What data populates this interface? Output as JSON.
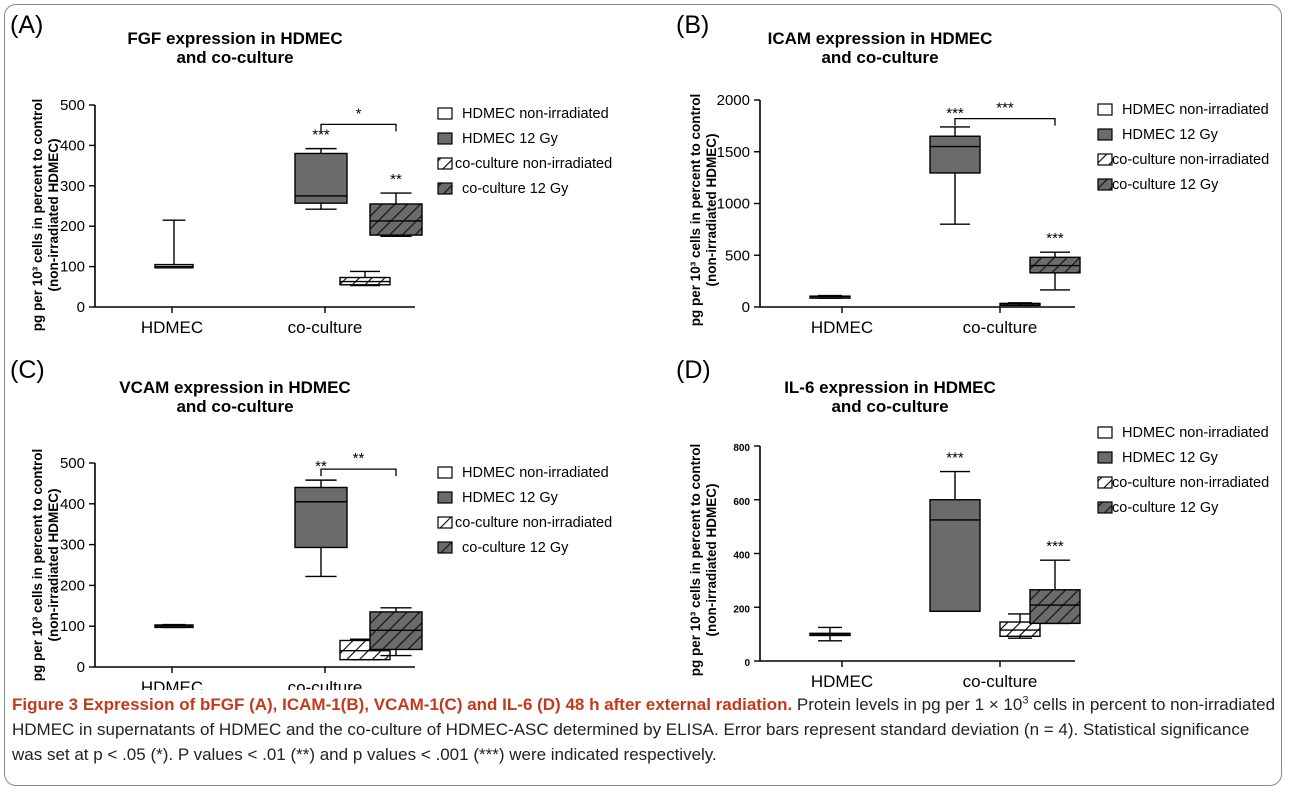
{
  "colors": {
    "dark_fill": "#6b6b6b",
    "line": "#000000",
    "caption_accent": "#c23a1e"
  },
  "chart_data": [
    {
      "type": "boxplot",
      "panel": "(A)",
      "title": [
        "FGF expression in HDMEC",
        "and co-culture"
      ],
      "ylabel": [
        "pg per 10³ cells in percent to control",
        "(non-irradiated HDMEC)"
      ],
      "ylim": [
        0,
        500
      ],
      "yticks": [
        0,
        100,
        200,
        300,
        400,
        500
      ],
      "categories": [
        "HDMEC",
        "co-culture"
      ],
      "legend": [
        "HDMEC non-irradiated",
        "HDMEC 12 Gy",
        "co-culture non-irradiated",
        "co-culture 12 Gy"
      ],
      "boxes": [
        {
          "series": "HDMEC non-irradiated",
          "category": "HDMEC",
          "min": 97,
          "q1": 97,
          "median": 100,
          "q3": 105,
          "max": 215,
          "label": ""
        },
        {
          "series": "HDMEC 12 Gy",
          "category": "HDMEC",
          "min": 242,
          "q1": 257,
          "median": 275,
          "q3": 380,
          "max": 392,
          "label": "***"
        },
        {
          "series": "co-culture non-irradiated",
          "category": "co-culture",
          "min": 53,
          "q1": 55,
          "median": 63,
          "q3": 73,
          "max": 88,
          "label": ""
        },
        {
          "series": "co-culture 12 Gy",
          "category": "co-culture",
          "min": 175,
          "q1": 178,
          "median": 213,
          "q3": 255,
          "max": 282,
          "label": "**"
        }
      ],
      "bracket": {
        "from": "HDMEC 12 Gy",
        "to": "co-culture 12 Gy",
        "y": 452,
        "label": "*"
      }
    },
    {
      "type": "boxplot",
      "panel": "(B)",
      "title": [
        "ICAM expression in HDMEC",
        "and co-culture"
      ],
      "ylabel": [
        "pg per 10³ cells in percent to control",
        "(non-irradiated HDMEC)"
      ],
      "ylim": [
        0,
        2000
      ],
      "yticks": [
        0,
        500,
        1000,
        1500,
        2000
      ],
      "categories": [
        "HDMEC",
        "co-culture"
      ],
      "legend": [
        "HDMEC non-irradiated",
        "HDMEC 12 Gy",
        "co-culture non-irradiated",
        "co-culture 12 Gy"
      ],
      "boxes": [
        {
          "series": "HDMEC non-irradiated",
          "category": "HDMEC",
          "min": 85,
          "q1": 90,
          "median": 100,
          "q3": 105,
          "max": 110,
          "label": ""
        },
        {
          "series": "HDMEC 12 Gy",
          "category": "HDMEC",
          "min": 800,
          "q1": 1295,
          "median": 1550,
          "q3": 1650,
          "max": 1740,
          "label": "***"
        },
        {
          "series": "co-culture non-irradiated",
          "category": "co-culture",
          "min": 20,
          "q1": 25,
          "median": 30,
          "q3": 35,
          "max": 40,
          "label": ""
        },
        {
          "series": "co-culture 12 Gy",
          "category": "co-culture",
          "min": 165,
          "q1": 330,
          "median": 400,
          "q3": 480,
          "max": 530,
          "label": "***"
        }
      ],
      "bracket": {
        "from": "HDMEC 12 Gy",
        "to": "co-culture 12 Gy",
        "y": 1820,
        "label": "***"
      }
    },
    {
      "type": "boxplot",
      "panel": "(C)",
      "title": [
        "VCAM expression in HDMEC",
        "and co-culture"
      ],
      "ylabel": [
        "pg per 10³ cells in percent to control",
        "(non-irradiated HDMEC)"
      ],
      "ylim": [
        0,
        500
      ],
      "yticks": [
        0,
        100,
        200,
        300,
        400,
        500
      ],
      "categories": [
        "HDMEC",
        "co-culture"
      ],
      "legend": [
        "HDMEC non-irradiated",
        "HDMEC 12 Gy",
        "co-culture non-irradiated",
        "co-culture 12 Gy"
      ],
      "boxes": [
        {
          "series": "HDMEC non-irradiated",
          "category": "HDMEC",
          "min": 97,
          "q1": 97,
          "median": 100,
          "q3": 103,
          "max": 104,
          "label": ""
        },
        {
          "series": "HDMEC 12 Gy",
          "category": "HDMEC",
          "min": 222,
          "q1": 293,
          "median": 405,
          "q3": 440,
          "max": 458,
          "label": "**"
        },
        {
          "series": "co-culture non-irradiated",
          "category": "co-culture",
          "min": 18,
          "q1": 18,
          "median": 40,
          "q3": 65,
          "max": 68,
          "label": ""
        },
        {
          "series": "co-culture 12 Gy",
          "category": "co-culture",
          "min": 28,
          "q1": 43,
          "median": 90,
          "q3": 135,
          "max": 145,
          "label": ""
        }
      ],
      "bracket": {
        "from": "HDMEC 12 Gy",
        "to": "co-culture 12 Gy",
        "y": 485,
        "label": "**"
      }
    },
    {
      "type": "boxplot",
      "panel": "(D)",
      "title": [
        "IL-6 expression in HDMEC",
        "and co-culture"
      ],
      "ylabel": [
        "pg per 10³ cells in percent to control",
        "(non-irradiated HDMEC)"
      ],
      "ylim": [
        0,
        800
      ],
      "yticks": [
        0,
        200,
        400,
        600,
        800
      ],
      "categories": [
        "HDMEC",
        "co-culture"
      ],
      "legend": [
        "HDMEC non-irradiated",
        "HDMEC 12 Gy",
        "co-culture non-irradiated",
        "co-culture 12 Gy"
      ],
      "boxes": [
        {
          "series": "HDMEC non-irradiated",
          "category": "HDMEC",
          "min": 75,
          "q1": 95,
          "median": 100,
          "q3": 103,
          "max": 125,
          "label": ""
        },
        {
          "series": "HDMEC 12 Gy",
          "category": "HDMEC",
          "min": 185,
          "q1": 185,
          "median": 525,
          "q3": 600,
          "max": 705,
          "label": "***"
        },
        {
          "series": "co-culture non-irradiated",
          "category": "co-culture",
          "min": 85,
          "q1": 92,
          "median": 115,
          "q3": 145,
          "max": 175,
          "label": ""
        },
        {
          "series": "co-culture 12 Gy",
          "category": "co-culture",
          "min": 140,
          "q1": 140,
          "median": 208,
          "q3": 265,
          "max": 375,
          "label": "***"
        }
      ],
      "bracket": null
    }
  ],
  "caption": {
    "title": "Figure 3 Expression of bFGF (A), ICAM-1(B), VCAM-1(C) and IL-6 (D) 48 h after external radiation.",
    "body_1": " Protein levels in pg per 1 × 10",
    "body_sup": "3",
    "body_2": " cells in percent to non-irradiated HDMEC in supernatants of HDMEC and the co-culture of HDMEC-ASC determined by ELISA. Error bars represent standard deviation (n = 4). Statistical significance was set at p < .05 (*). P values < .01 (**) and p values < .001 (***) were indicated respectively."
  }
}
